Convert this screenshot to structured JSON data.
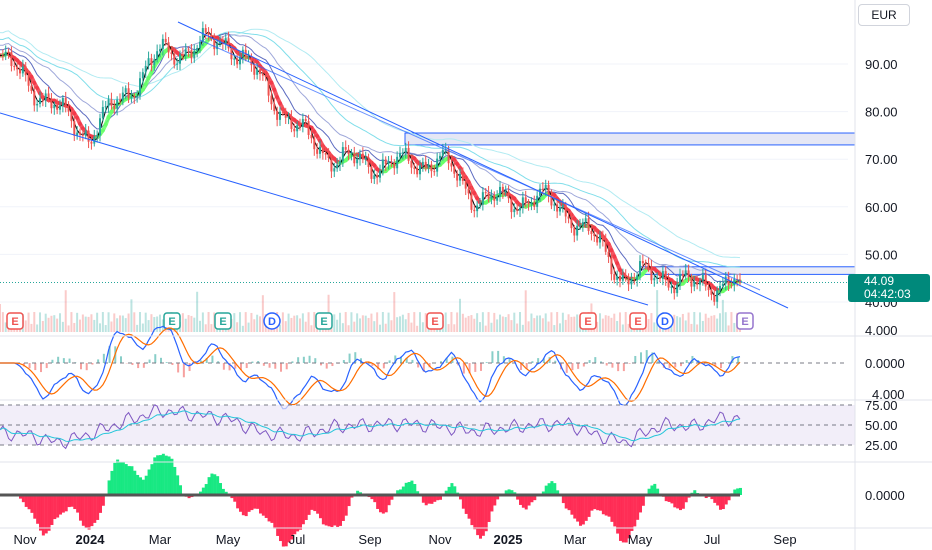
{
  "currency": "EUR",
  "last_price": {
    "value": "44.09",
    "countdown": "04:42:03"
  },
  "price_axis": {
    "ticks": [
      "90.00",
      "80.00",
      "70.00",
      "60.00",
      "50.00",
      "40.00"
    ],
    "clipped_tick": "4.000"
  },
  "macd_axis": {
    "zero": "0.0000",
    "clipped_tick": "4.000"
  },
  "rsi_axis": {
    "ticks": [
      "75.00",
      "50.00",
      "25.00"
    ]
  },
  "osc_axis": {
    "zero": "0.0000"
  },
  "time_axis": [
    {
      "label": "Nov",
      "bold": false
    },
    {
      "label": "2024",
      "bold": true
    },
    {
      "label": "Mar",
      "bold": false
    },
    {
      "label": "May",
      "bold": false
    },
    {
      "label": "Jul",
      "bold": false
    },
    {
      "label": "Sep",
      "bold": false
    },
    {
      "label": "Nov",
      "bold": false
    },
    {
      "label": "2025",
      "bold": true
    },
    {
      "label": "Mar",
      "bold": false
    },
    {
      "label": "May",
      "bold": false
    },
    {
      "label": "Jul",
      "bold": false
    },
    {
      "label": "Sep",
      "bold": false
    }
  ],
  "event_markers": [
    "E",
    "E",
    "E",
    "D",
    "E",
    "E",
    "E",
    "E",
    "D",
    "E"
  ],
  "colors": {
    "up": "#26a69a",
    "down": "#ef5350",
    "trendline": "#2962ff",
    "zone": "#c5cae9",
    "rsi_band": "#ede7f6",
    "rsi_line": "#7e57c2",
    "macd_line": "#2962ff",
    "signal_line": "#ff6d00",
    "osc_pos": "#00e676",
    "osc_neg": "#ff1744",
    "ribbon_down": "#f23645",
    "ribbon_up": "#66ff66"
  },
  "chart_data": {
    "type": "line",
    "symbol_currency": "EUR",
    "x": [
      "2023-10",
      "2023-11",
      "2023-12",
      "2024-01",
      "2024-02",
      "2024-03",
      "2024-04",
      "2024-05",
      "2024-06",
      "2024-07",
      "2024-08",
      "2024-09",
      "2024-10",
      "2024-11",
      "2024-12",
      "2025-01",
      "2025-02",
      "2025-03",
      "2025-04",
      "2025-05",
      "2025-06",
      "2025-07"
    ],
    "series": [
      {
        "values": [
          91,
          87,
          80,
          75,
          84,
          92,
          95,
          86,
          76,
          70,
          69,
          69,
          70,
          62,
          61,
          62,
          59,
          54,
          45,
          46,
          43,
          44.09
        ]
      }
    ],
    "ylim": [
      38,
      100
    ],
    "last_value": 44.09,
    "resistance_zone": [
      73,
      75.5
    ],
    "level_band": [
      45.8,
      47.4
    ],
    "rsi": {
      "values": [
        40,
        38,
        28,
        38,
        55,
        68,
        58,
        40,
        36,
        48,
        50,
        52,
        48,
        42,
        46,
        50,
        52,
        40,
        28,
        50,
        48,
        58
      ],
      "levels": [
        75,
        50,
        25
      ]
    },
    "macd_zero": 0,
    "oscillator_zero": 0
  }
}
